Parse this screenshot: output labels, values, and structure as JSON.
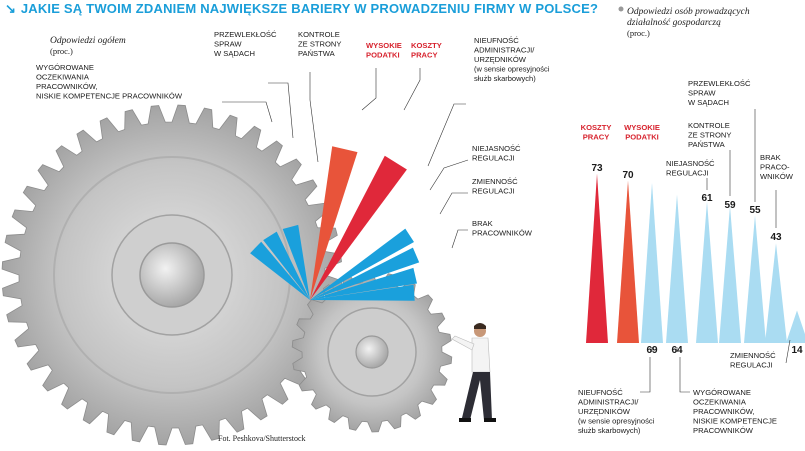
{
  "title": "JAKIE SĄ TWOIM ZDANIEM NAJWIĘKSZE BARIERY W PROWADZENIU FIRMY W POLSCE?",
  "title_icon": "arrow-down-right-icon",
  "credit": "Fot. Peshkova/Shutterstock",
  "colors": {
    "blue": "#1aa0dc",
    "red": "#e0283a",
    "orange_red": "#e8543a",
    "light_blue": "#aadcf2",
    "label_red": "#d7232e",
    "gear": "#b8b8b8"
  },
  "chart_data": [
    {
      "type": "bar",
      "title": "Odpowiedzi ogółem",
      "subtitle": "(proc.)",
      "categories": [
        "WYGÓROWANE OCZEKIWANIA PRACOWNIKÓW, NISKIE KOMPETENCJE PRACOWNIKÓW",
        "PRZEWLEKŁOŚĆ SPRAW W SĄDACH",
        "KONTROLE ZE STRONY PAŃSTWA",
        "WYSOKIE PODATKI",
        "KOSZTY PRACY",
        "NIEUFNOŚĆ ADMINISTRACJI/ URZĘDNIKÓW (w sensie opresyjności służb skarbowych)",
        "NIEJASNOŚĆ REGULACJI",
        "ZMIENNOŚĆ REGULACJI",
        "BRAK PRACOWNIKÓW"
      ],
      "values": [
        21,
        21,
        21,
        43,
        45,
        33,
        32,
        30,
        29
      ],
      "label_lines": [
        [
          "WYGÓROWANE",
          "OCZEKIWANIA",
          "PRACOWNIKÓW,",
          "NISKIE KOMPETENCJE PRACOWNIKÓW"
        ],
        [
          "PRZEWLEKŁOŚĆ",
          "SPRAW",
          "W SĄDACH"
        ],
        [
          "KONTROLE",
          "ZE STRONY",
          "PAŃSTWA"
        ],
        [
          "WYSOKIE",
          "PODATKI"
        ],
        [
          "KOSZTY",
          "PRACY"
        ],
        [
          "NIEUFNOŚĆ",
          "ADMINISTRACJI/",
          "URZĘDNIKÓW",
          "(w sensie opresyjności",
          "służb skarbowych)"
        ],
        [
          "NIEJASNOŚĆ",
          "REGULACJI"
        ],
        [
          "ZMIENNOŚĆ",
          "REGULACJI"
        ],
        [
          "BRAK",
          "PRACOWNIKÓW"
        ]
      ],
      "highlight": [
        "WYSOKIE PODATKI",
        "KOSZTY PRACY"
      ]
    },
    {
      "type": "bar",
      "title": "Odpowiedzi osób prowadzących działalność gospodarczą",
      "subtitle": "(proc.)",
      "categories": [
        "KOSZTY PRACY",
        "WYSOKIE PODATKI",
        "NIEUFNOŚĆ ADMINISTRACJI/ URZĘDNIKÓW (w sensie opresyjności służb skarbowych)",
        "WYGÓROWANE OCZEKIWANIA PRACOWNIKÓW, NISKIE KOMPETENCJE PRACOWNIKÓW",
        "NIEJASNOŚĆ REGULACJI",
        "KONTROLE ZE STRONY PAŃSTWA",
        "PRZEWLEKŁOŚĆ SPRAW W SĄDACH",
        "BRAK PRACOWNIKÓW",
        "ZMIENNOŚĆ REGULACJI"
      ],
      "values": [
        73,
        70,
        69,
        64,
        61,
        59,
        55,
        43,
        14
      ],
      "label_lines": [
        [
          "KOSZTY",
          "PRACY"
        ],
        [
          "WYSOKIE",
          "PODATKI"
        ],
        [
          "NIEUFNOŚĆ",
          "ADMINISTRACJI/",
          "URZĘDNIKÓW",
          "(w sensie opresyjności",
          "służb skarbowych)"
        ],
        [
          "WYGÓROWANE",
          "OCZEKIWANIA",
          "PRACOWNIKÓW,",
          "NISKIE KOMPETENCJE",
          "PRACOWNIKÓW"
        ],
        [
          "NIEJASNOŚĆ",
          "REGULACJI"
        ],
        [
          "KONTROLE",
          "ZE STRONY",
          "PAŃSTWA"
        ],
        [
          "PRZEWLEKŁOŚĆ",
          "SPRAW",
          "W SĄDACH"
        ],
        [
          "BRAK",
          "PRACO-",
          "WNIKÓW"
        ],
        [
          "ZMIENNOŚĆ",
          "REGULACJI"
        ]
      ],
      "highlight": [
        "KOSZTY PRACY",
        "WYSOKIE PODATKI"
      ]
    }
  ]
}
